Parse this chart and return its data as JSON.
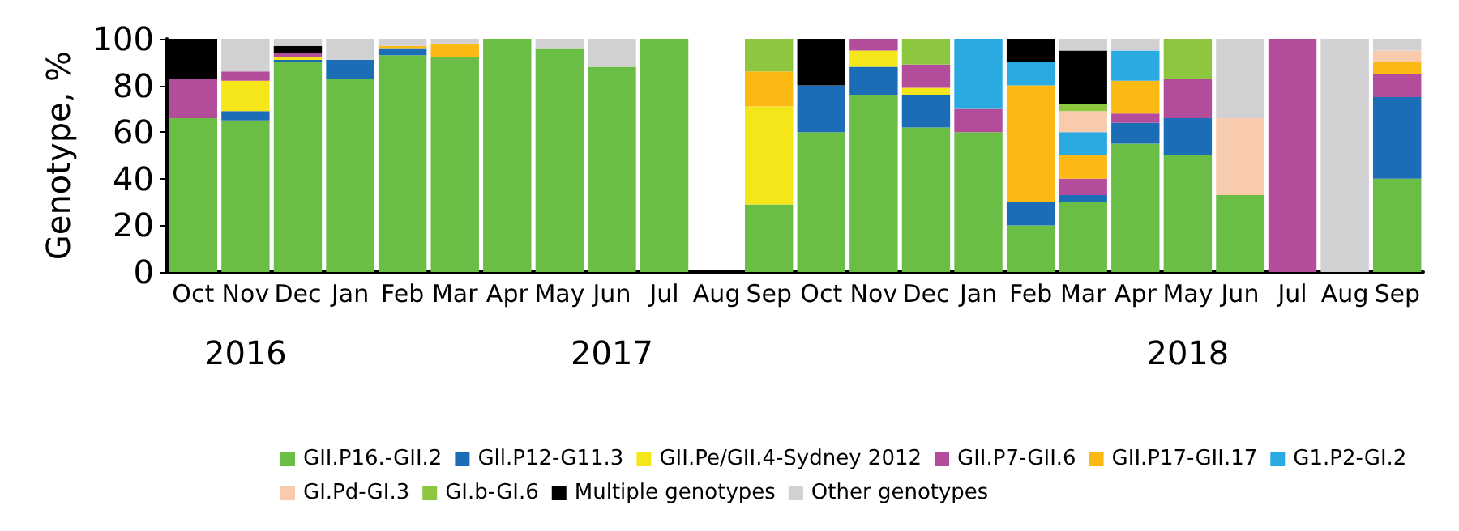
{
  "chart_data": {
    "type": "bar",
    "stacked": true,
    "ylabel": "Genotype, %",
    "categories": [
      "Oct",
      "Nov",
      "Dec",
      "Jan",
      "Feb",
      "Mar",
      "Apr",
      "May",
      "Jun",
      "Jul",
      "Aug",
      "Sep",
      "Oct",
      "Nov",
      "Dec",
      "Jan",
      "Feb",
      "Mar",
      "Apr",
      "May",
      "Jun",
      "Jul",
      "Aug",
      "Sep"
    ],
    "series": [
      {
        "name": "GII.P16.-GII.2",
        "color": "#6abd45",
        "values": [
          66,
          65,
          90,
          83,
          93,
          92,
          100,
          96,
          88,
          100,
          null,
          29,
          60,
          76,
          62,
          60,
          20,
          30,
          55,
          50,
          33,
          0,
          0,
          40
        ]
      },
      {
        "name": "Gll.P12-G11.3",
        "color": "#1b6db5",
        "values": [
          0,
          4,
          1,
          8,
          3,
          0,
          0,
          0,
          0,
          0,
          null,
          0,
          20,
          12,
          14,
          0,
          10,
          3,
          9,
          16,
          0,
          0,
          0,
          35
        ]
      },
      {
        "name": "GII.Pe/GII.4-Sydney 2012",
        "color": "#f5e61a",
        "values": [
          0,
          13,
          1,
          0,
          0,
          0,
          0,
          0,
          0,
          0,
          null,
          42,
          0,
          7,
          3,
          0,
          0,
          0,
          0,
          0,
          0,
          0,
          0,
          0
        ]
      },
      {
        "name": "GII.P7-GII.6",
        "color": "#b44c9c",
        "values": [
          17,
          4,
          2,
          0,
          0,
          0,
          0,
          0,
          0,
          0,
          null,
          0,
          0,
          5,
          10,
          10,
          0,
          7,
          4,
          17,
          0,
          100,
          0,
          10
        ]
      },
      {
        "name": "GII.P17-GII.17",
        "color": "#fdb913",
        "values": [
          0,
          0,
          0,
          0,
          1,
          6,
          0,
          0,
          0,
          0,
          null,
          15,
          0,
          0,
          0,
          0,
          50,
          10,
          14,
          0,
          0,
          0,
          0,
          5
        ]
      },
      {
        "name": "G1.P2-GI.2",
        "color": "#29abe2",
        "values": [
          0,
          0,
          0,
          0,
          0,
          0,
          0,
          0,
          0,
          0,
          null,
          0,
          0,
          0,
          0,
          30,
          10,
          10,
          13,
          0,
          0,
          0,
          0,
          0
        ]
      },
      {
        "name": "GI.Pd-GI.3",
        "color": "#f8cbad",
        "values": [
          0,
          0,
          0,
          0,
          0,
          0,
          0,
          0,
          0,
          0,
          null,
          0,
          0,
          0,
          0,
          0,
          0,
          9,
          0,
          0,
          33,
          0,
          0,
          5
        ]
      },
      {
        "name": "GI.b-GI.6",
        "color": "#8dc63f",
        "values": [
          0,
          0,
          0,
          0,
          0,
          0,
          0,
          0,
          0,
          0,
          null,
          14,
          0,
          0,
          11,
          0,
          0,
          3,
          0,
          17,
          0,
          0,
          0,
          0
        ]
      },
      {
        "name": "Multiple genotypes",
        "color": "#000000",
        "values": [
          17,
          0,
          3,
          0,
          0,
          0,
          0,
          0,
          0,
          0,
          null,
          0,
          20,
          0,
          0,
          0,
          10,
          23,
          0,
          0,
          0,
          0,
          0,
          0
        ]
      },
      {
        "name": "Other genotypes",
        "color": "#d1d1d3",
        "values": [
          0,
          14,
          3,
          9,
          3,
          2,
          0,
          4,
          12,
          0,
          null,
          0,
          0,
          0,
          0,
          0,
          0,
          5,
          5,
          0,
          34,
          0,
          100,
          5
        ]
      }
    ],
    "ylim": [
      0,
      100
    ],
    "yticks": [
      0,
      20,
      40,
      60,
      80,
      100
    ],
    "grid": false,
    "legend": "bottom",
    "annotations": [
      "2016",
      "2017",
      "2018"
    ]
  }
}
